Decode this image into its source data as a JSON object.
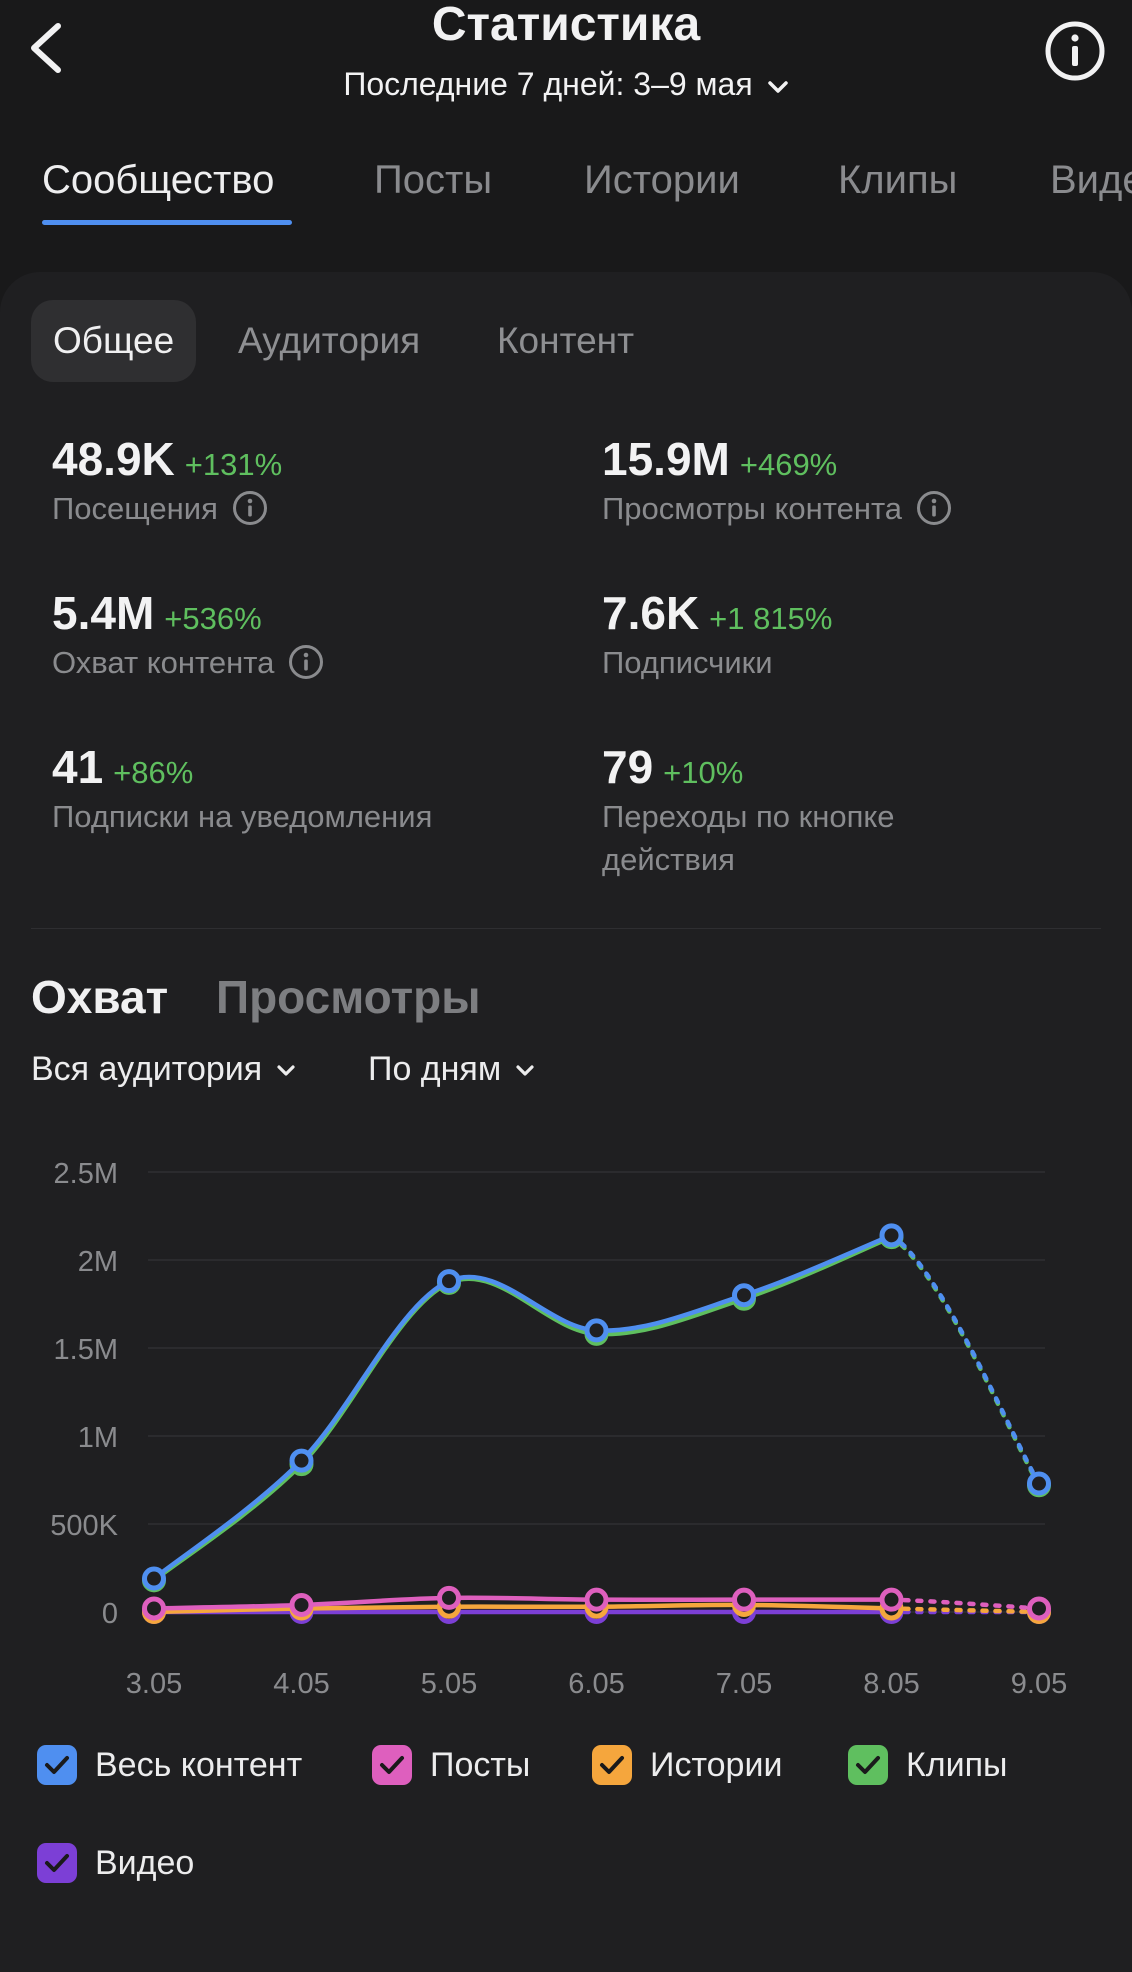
{
  "header": {
    "title": "Статистика",
    "period": "Последние 7 дней: 3–9 мая"
  },
  "tabs": [
    "Сообщество",
    "Посты",
    "Истории",
    "Клипы",
    "Видео"
  ],
  "subtabs": [
    "Общее",
    "Аудитория",
    "Контент"
  ],
  "metrics": [
    {
      "value": "48.9K",
      "delta": "+131%",
      "label": "Посещения",
      "label2": ""
    },
    {
      "value": "15.9M",
      "delta": "+469%",
      "label": "Просмотры контента",
      "label2": ""
    },
    {
      "value": "5.4M",
      "delta": "+536%",
      "label": "Охват контента",
      "label2": ""
    },
    {
      "value": "7.6K",
      "delta": "+1 815%",
      "label": "Подписчики",
      "label2": ""
    },
    {
      "value": "41",
      "delta": "+86%",
      "label": "Подписки на уведомления",
      "label2": ""
    },
    {
      "value": "79",
      "delta": "+10%",
      "label": "Переходы по кнопке",
      "label2": "действия"
    }
  ],
  "segments": {
    "reach": "Охват",
    "views": "Просмотры"
  },
  "filters": {
    "audience": "Вся аудитория",
    "grouping": "По дням"
  },
  "colors": {
    "accent": "#4f8ff0",
    "positive": "#5fbf5f",
    "all_content": "#4f8ff0",
    "posts": "#de5fbe",
    "stories": "#f5a63d",
    "clips": "#5fbf5f",
    "video": "#7c3fd6"
  },
  "chart_data": {
    "type": "line",
    "categories": [
      "3.05",
      "4.05",
      "5.05",
      "6.05",
      "7.05",
      "8.05",
      "9.05"
    ],
    "y_ticks": [
      "0",
      "500K",
      "1M",
      "1.5M",
      "2M",
      "2.5M"
    ],
    "ylim": [
      0,
      2500000
    ],
    "grid": true,
    "legend_position": "bottom",
    "last_point_dashed": true,
    "series": [
      {
        "name": "Весь контент",
        "color": "#4f8ff0",
        "values": [
          190000,
          860000,
          1880000,
          1600000,
          1800000,
          2140000,
          730000
        ]
      },
      {
        "name": "Посты",
        "color": "#de5fbe",
        "values": [
          20000,
          40000,
          80000,
          70000,
          70000,
          70000,
          20000
        ]
      },
      {
        "name": "Истории",
        "color": "#f5a63d",
        "values": [
          0,
          20000,
          30000,
          30000,
          40000,
          20000,
          0
        ]
      },
      {
        "name": "Клипы",
        "color": "#5fbf5f",
        "values": [
          180000,
          840000,
          1870000,
          1580000,
          1780000,
          2130000,
          720000
        ]
      },
      {
        "name": "Видео",
        "color": "#7c3fd6",
        "values": [
          0,
          0,
          0,
          0,
          0,
          0,
          0
        ]
      }
    ]
  }
}
